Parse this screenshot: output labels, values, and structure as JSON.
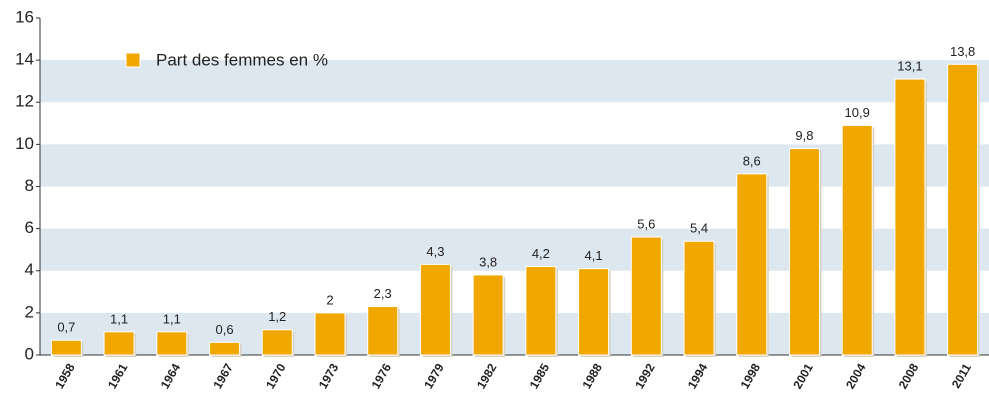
{
  "chart_data": {
    "type": "bar",
    "categories": [
      "1958",
      "1961",
      "1964",
      "1967",
      "1970",
      "1973",
      "1976",
      "1979",
      "1982",
      "1985",
      "1988",
      "1992",
      "1994",
      "1998",
      "2001",
      "2004",
      "2008",
      "2011"
    ],
    "series": [
      {
        "name": "Part des femmes en %",
        "color": "#f0a800",
        "values": [
          0.7,
          1.1,
          1.1,
          0.6,
          1.2,
          2,
          2.3,
          4.3,
          3.8,
          4.2,
          4.1,
          5.6,
          5.4,
          8.6,
          9.8,
          10.9,
          13.1,
          13.8
        ],
        "value_labels": [
          "0,7",
          "1,1",
          "1,1",
          "0,6",
          "1,2",
          "2",
          "2,3",
          "4,3",
          "3,8",
          "4,2",
          "4,1",
          "5,6",
          "5,4",
          "8,6",
          "9,8",
          "10,9",
          "13,1",
          "13,8"
        ]
      }
    ],
    "ylim": [
      0,
      16
    ],
    "yticks": [
      0,
      2,
      4,
      6,
      8,
      10,
      12,
      14,
      16
    ],
    "legend": "top-left",
    "grid": "bands"
  }
}
